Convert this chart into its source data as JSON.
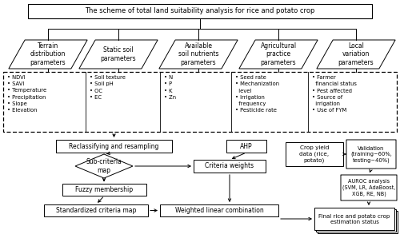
{
  "title": "The scheme of total land suitability analysis for rice and potato crop",
  "para_labels": [
    "Terrain\ndistribution\nparameters",
    "Static soil\nparameters",
    "Available\nsoil nutrients\nparameters",
    "Agricultural\npractice\nparameters",
    "Local\nvariation\nparameters"
  ],
  "bullet_texts": [
    "• NDVI\n• SAVI\n• Temperature\n• Precipitation\n• Slope\n• Elevation",
    "• Soil texture\n• Soil pH\n• OC\n• EC",
    "• N\n• P\n• K\n• Zn",
    "• Seed rate\n• Mechanization\n  level\n• Irrigation\n  frequency\n• Pesticide rate",
    "• Farmer\n  financial status\n• Pest affected\n• Source of\n  irrigation\n• Use of FYM"
  ],
  "figsize": [
    5.0,
    3.13
  ],
  "dpi": 100
}
